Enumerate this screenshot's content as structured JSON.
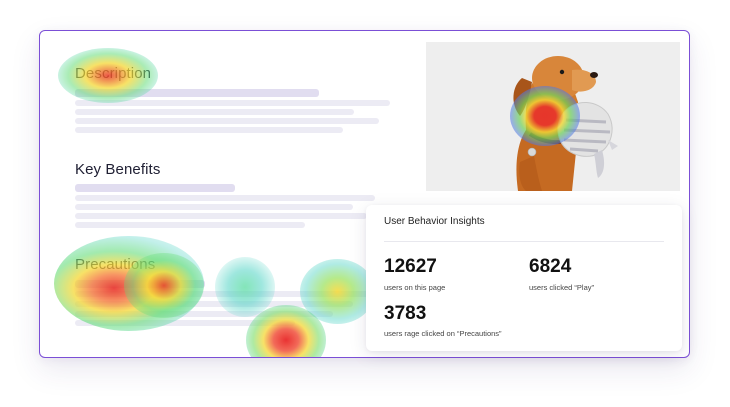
{
  "content": {
    "description_heading": "Description",
    "key_benefits_heading": "Key Benefits",
    "precautions_heading": "Precautions"
  },
  "image": {
    "subject": "dog holding a plush toy"
  },
  "insights": {
    "title": "User Behavior Insights",
    "stats": [
      {
        "value": "12627",
        "label": "users on this page"
      },
      {
        "value": "6824",
        "label": "users clicked “Play”"
      },
      {
        "value": "3783",
        "label": "users rage clicked on “Precautions”"
      }
    ]
  },
  "colors": {
    "frame_border": "#7b4fd6",
    "placeholder_bar": "#ecebf4",
    "heat_hot": "#e8322b",
    "heat_warm": "#f5d834",
    "heat_cool": "#4fd3c4"
  }
}
